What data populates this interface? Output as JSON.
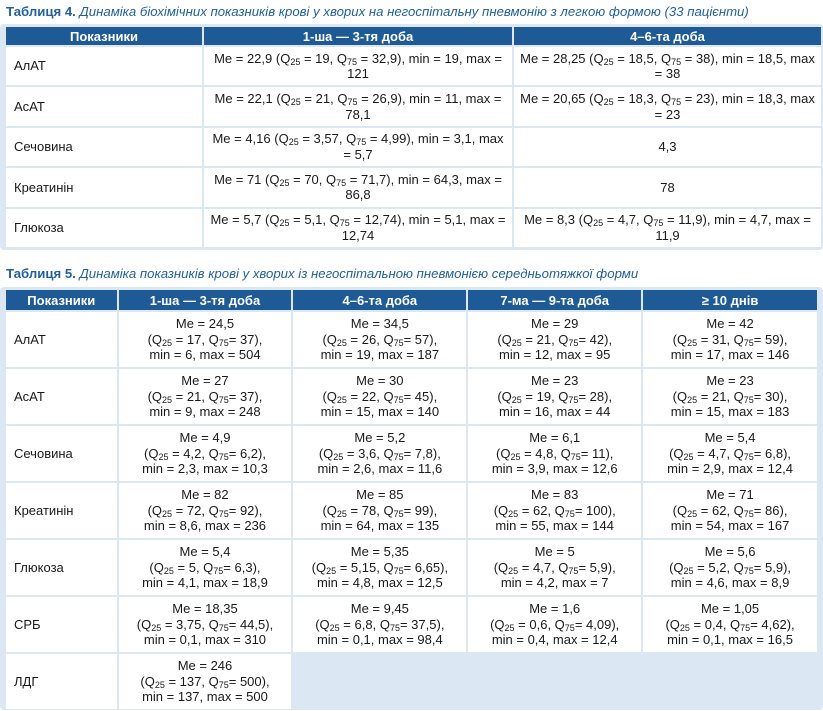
{
  "table4": {
    "caption_label": "Таблиця 4.",
    "caption_text": "Динаміка біохімічних показників крові у хворих на негоспітальну пневмонію з легкою формою (33 пацієнти)",
    "headers": [
      "Показники",
      "1-ша — 3-тя доба",
      "4–6-та доба"
    ],
    "rows": [
      {
        "name": "АлАТ",
        "cells": [
          {
            "me": "22,9",
            "q25": "19",
            "q75": "32,9",
            "min": "19",
            "max": "121"
          },
          {
            "me": "28,25",
            "q25": "18,5",
            "q75": "38",
            "min": "18,5",
            "max": "38"
          }
        ]
      },
      {
        "name": "АсАТ",
        "cells": [
          {
            "me": "22,1",
            "q25": "21",
            "q75": "26,9",
            "min": "11",
            "max": "78,1"
          },
          {
            "me": "20,65",
            "q25": "18,3",
            "q75": "23",
            "min": "18,3",
            "max": "23"
          }
        ]
      },
      {
        "name": "Сечовина",
        "cells": [
          {
            "me": "4,16",
            "q25": "3,57",
            "q75": "4,99",
            "min": "3,1",
            "max": "5,7"
          },
          {
            "plain": "4,3"
          }
        ]
      },
      {
        "name": "Креатинін",
        "cells": [
          {
            "me": "71",
            "q25": "70",
            "q75": "71,7",
            "min": "64,3",
            "max": "86,8"
          },
          {
            "plain": "78"
          }
        ]
      },
      {
        "name": "Глюкоза",
        "cells": [
          {
            "me": "5,7",
            "q25": "5,1",
            "q75": "12,74",
            "min": "5,1",
            "max": "12,74"
          },
          {
            "me": "8,3",
            "q25": "4,7",
            "q75": "11,9",
            "min": "4,7",
            "max": "11,9"
          }
        ]
      }
    ]
  },
  "table5": {
    "caption_label": "Таблиця 5.",
    "caption_text": "Динаміка показників крові у хворих із негоспітальною пневмонією середньотяжкої форми",
    "headers": [
      "Показники",
      "1-ша — 3-тя доба",
      "4–6-та доба",
      "7-ма — 9-та доба",
      "≥ 10 днів"
    ],
    "rows": [
      {
        "name": "АлАТ",
        "cells": [
          {
            "me": "24,5",
            "q25": "17",
            "q75": "37",
            "min": "6",
            "max": "504"
          },
          {
            "me": "34,5",
            "q25": "26",
            "q75": "57",
            "min": "19",
            "max": "187"
          },
          {
            "me": "29",
            "q25": "21",
            "q75": "42",
            "min": "12",
            "max": "95"
          },
          {
            "me": "42",
            "q25": "31",
            "q75": "59",
            "min": "17",
            "max": "146"
          }
        ]
      },
      {
        "name": "АсАТ",
        "cells": [
          {
            "me": "27",
            "q25": "21",
            "q75": "37",
            "min": "9",
            "max": "248"
          },
          {
            "me": "30",
            "q25": "22",
            "q75": "45",
            "min": "15",
            "max": "140"
          },
          {
            "me": "23",
            "q25": "19",
            "q75": "28",
            "min": "16",
            "max": "44"
          },
          {
            "me": "23",
            "q25": "21",
            "q75": "30",
            "min": "15",
            "max": "183"
          }
        ]
      },
      {
        "name": "Сечовина",
        "cells": [
          {
            "me": "4,9",
            "q25": "4,2",
            "q75": "6,2",
            "min": "2,3",
            "max": "10,3"
          },
          {
            "me": "5,2",
            "q25": "3,6",
            "q75": "7,8",
            "min": "2,6",
            "max": "11,6"
          },
          {
            "me": "6,1",
            "q25": "4,8",
            "q75": "11",
            "min": "3,9",
            "max": "12,6"
          },
          {
            "me": "5,4",
            "q25": "4,7",
            "q75": "6,8",
            "min": "2,9",
            "max": "12,4"
          }
        ]
      },
      {
        "name": "Креатинін",
        "cells": [
          {
            "me": "82",
            "q25": "72",
            "q75": "92",
            "min": "8,6",
            "max": "236"
          },
          {
            "me": "85",
            "q25": "78",
            "q75": "99",
            "min": "64",
            "max": "135"
          },
          {
            "me": "83",
            "q25": "62",
            "q75": "100",
            "min": "55",
            "max": "144"
          },
          {
            "me": "71",
            "q25": "62",
            "q75": "86",
            "min": "54",
            "max": "167"
          }
        ]
      },
      {
        "name": "Глюкоза",
        "cells": [
          {
            "me": "5,4",
            "q25": "5",
            "q75": "6,3",
            "min": "4,1",
            "max": "18,9"
          },
          {
            "me": "5,35",
            "q25": "5,15",
            "q75": "6,65",
            "min": "4,8",
            "max": "12,5"
          },
          {
            "me": "5",
            "q25": "4,7",
            "q75": "5,9",
            "min": "4,2",
            "max": "7"
          },
          {
            "me": "5,6",
            "q25": "5,2",
            "q75": "5,9",
            "min": "4,6",
            "max": "8,9"
          }
        ]
      },
      {
        "name": "СРБ",
        "cells": [
          {
            "me": "18,35",
            "q25": "3,75",
            "q75": "44,5",
            "min": "0,1",
            "max": "310"
          },
          {
            "me": "9,45",
            "q25": "6,8",
            "q75": "37,5",
            "min": "0,1",
            "max": "98,4"
          },
          {
            "me": "1,6",
            "q25": "0,6",
            "q75": "4,09",
            "min": "0,4",
            "max": "12,4"
          },
          {
            "me": "1,05",
            "q25": "0,4",
            "q75": "4,62",
            "min": "0,1",
            "max": "16,5"
          }
        ]
      },
      {
        "name": "ЛДГ",
        "cells": [
          {
            "me": "246",
            "q25": "137",
            "q75": "500",
            "min": "137",
            "max": "500"
          },
          {
            "blank": true
          },
          {
            "blank": true
          },
          {
            "blank": true
          }
        ]
      }
    ]
  }
}
